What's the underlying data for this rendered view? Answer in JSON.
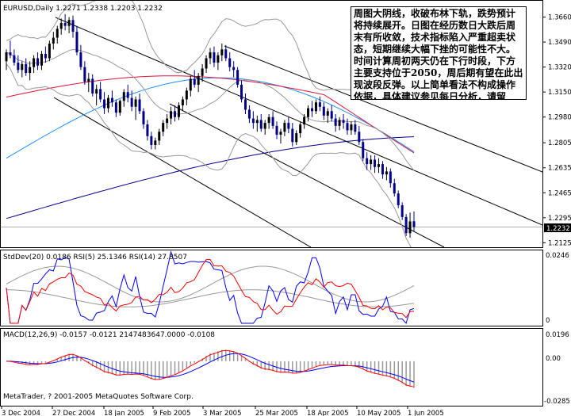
{
  "main_panel": {
    "header": "EURUSD,Daily  1.2271 1.2338 1.2203 1.2232",
    "price_ticks": [
      "1.3660",
      "1.3490",
      "1.3320",
      "1.3150",
      "1.2980",
      "1.2805",
      "1.2635",
      "1.2465",
      "1.2295",
      "1.2125"
    ],
    "current_price": "1.2232",
    "note": "周图大阴线，收破布林下轨，跌势预计将持续展开。日图在经历数日大跌后周末有所收敛，技术指标陷入严重超卖状态，短期继续大幅下挫的可能性不大。时间计算周初两天仍在下行时段，下方主要支持位于2050，周后期有望在此出现波段反弹。以上简单看法不构成操作依据，具体建议参见每日分析，请留意。"
  },
  "rsi_panel": {
    "header": "StdDev(20) 0.0186  RSI(5) 25.1346  RSI(14) 27.8507",
    "top_tick": "0.0246",
    "bottom_tick": "0"
  },
  "macd_panel": {
    "header": "MACD(12,26,9) -0.0157 -0.0121 2147483647.0000 -0.0108",
    "ticks": [
      "0.0196",
      "0.00",
      "-0.0285"
    ],
    "copyright": "MetaTrader, ? 2001-2005 MetaQuotes Software Corp."
  },
  "x_ticks": [
    "3 Dec 2004",
    "27 Dec 2004",
    "18 Jan 2005",
    "9 Feb 2005",
    "3 Mar 2005",
    "25 Mar 2005",
    "18 Apr 2005",
    "10 May 2005",
    "1 Jun 2005"
  ],
  "colors": {
    "bull_candle": "#000000",
    "bear_candle": "#00008b",
    "ma_short": "#dc143c",
    "ma_mid": "#1e90ff",
    "ma_long": "#00008b",
    "bollinger": "#999999",
    "rsi5": "#0000ff",
    "rsi14": "#ff0000",
    "macd_hist": "#999999",
    "macd_signal": "#0000ff",
    "macd_main": "#ff0000"
  },
  "chart_data": [
    {
      "type": "candlestick",
      "title": "EURUSD,Daily",
      "ylim": [
        1.21,
        1.376
      ],
      "candles": [
        [
          1.336,
          1.344,
          1.33,
          1.342
        ],
        [
          1.342,
          1.35,
          1.338,
          1.34
        ],
        [
          1.34,
          1.344,
          1.333,
          1.335
        ],
        [
          1.335,
          1.34,
          1.328,
          1.33
        ],
        [
          1.33,
          1.336,
          1.325,
          1.334
        ],
        [
          1.334,
          1.338,
          1.326,
          1.328
        ],
        [
          1.328,
          1.336,
          1.323,
          1.332
        ],
        [
          1.332,
          1.34,
          1.328,
          1.338
        ],
        [
          1.338,
          1.342,
          1.33,
          1.333
        ],
        [
          1.333,
          1.343,
          1.33,
          1.341
        ],
        [
          1.341,
          1.346,
          1.335,
          1.338
        ],
        [
          1.338,
          1.35,
          1.336,
          1.348
        ],
        [
          1.348,
          1.356,
          1.344,
          1.352
        ],
        [
          1.352,
          1.36,
          1.348,
          1.358
        ],
        [
          1.358,
          1.365,
          1.354,
          1.362
        ],
        [
          1.362,
          1.368,
          1.357,
          1.36
        ],
        [
          1.36,
          1.366,
          1.355,
          1.364
        ],
        [
          1.364,
          1.367,
          1.352,
          1.356
        ],
        [
          1.356,
          1.36,
          1.34,
          1.342
        ],
        [
          1.342,
          1.347,
          1.33,
          1.332
        ],
        [
          1.332,
          1.336,
          1.32,
          1.322
        ],
        [
          1.322,
          1.328,
          1.315,
          1.324
        ],
        [
          1.324,
          1.327,
          1.312,
          1.314
        ],
        [
          1.314,
          1.32,
          1.306,
          1.317
        ],
        [
          1.317,
          1.322,
          1.308,
          1.31
        ],
        [
          1.31,
          1.315,
          1.3,
          1.304
        ],
        [
          1.304,
          1.313,
          1.301,
          1.311
        ],
        [
          1.311,
          1.316,
          1.305,
          1.308
        ],
        [
          1.308,
          1.31,
          1.298,
          1.301
        ],
        [
          1.301,
          1.31,
          1.299,
          1.309
        ],
        [
          1.309,
          1.317,
          1.305,
          1.315
        ],
        [
          1.315,
          1.32,
          1.308,
          1.311
        ],
        [
          1.311,
          1.316,
          1.302,
          1.305
        ],
        [
          1.305,
          1.312,
          1.296,
          1.31
        ],
        [
          1.31,
          1.314,
          1.3,
          1.302
        ],
        [
          1.302,
          1.304,
          1.29,
          1.293
        ],
        [
          1.293,
          1.296,
          1.282,
          1.285
        ],
        [
          1.285,
          1.288,
          1.276,
          1.279
        ],
        [
          1.279,
          1.284,
          1.276,
          1.282
        ],
        [
          1.282,
          1.29,
          1.279,
          1.288
        ],
        [
          1.288,
          1.296,
          1.285,
          1.294
        ],
        [
          1.294,
          1.3,
          1.29,
          1.297
        ],
        [
          1.297,
          1.305,
          1.293,
          1.302
        ],
        [
          1.302,
          1.306,
          1.295,
          1.298
        ],
        [
          1.298,
          1.308,
          1.296,
          1.306
        ],
        [
          1.306,
          1.312,
          1.302,
          1.31
        ],
        [
          1.31,
          1.318,
          1.306,
          1.316
        ],
        [
          1.316,
          1.326,
          1.312,
          1.324
        ],
        [
          1.324,
          1.33,
          1.318,
          1.32
        ],
        [
          1.32,
          1.328,
          1.315,
          1.326
        ],
        [
          1.326,
          1.334,
          1.322,
          1.331
        ],
        [
          1.331,
          1.34,
          1.328,
          1.338
        ],
        [
          1.338,
          1.345,
          1.334,
          1.342
        ],
        [
          1.342,
          1.346,
          1.332,
          1.335
        ],
        [
          1.335,
          1.342,
          1.33,
          1.34
        ],
        [
          1.34,
          1.348,
          1.336,
          1.344
        ],
        [
          1.344,
          1.347,
          1.336,
          1.338
        ],
        [
          1.338,
          1.342,
          1.329,
          1.332
        ],
        [
          1.332,
          1.336,
          1.325,
          1.33
        ],
        [
          1.33,
          1.332,
          1.318,
          1.32
        ],
        [
          1.32,
          1.323,
          1.308,
          1.31
        ],
        [
          1.31,
          1.314,
          1.3,
          1.303
        ],
        [
          1.303,
          1.306,
          1.294,
          1.297
        ],
        [
          1.297,
          1.302,
          1.29,
          1.294
        ],
        [
          1.294,
          1.299,
          1.288,
          1.296
        ],
        [
          1.296,
          1.3,
          1.288,
          1.29
        ],
        [
          1.29,
          1.296,
          1.286,
          1.294
        ],
        [
          1.294,
          1.3,
          1.29,
          1.298
        ],
        [
          1.298,
          1.302,
          1.29,
          1.292
        ],
        [
          1.292,
          1.295,
          1.283,
          1.286
        ],
        [
          1.286,
          1.29,
          1.28,
          1.288
        ],
        [
          1.288,
          1.296,
          1.285,
          1.294
        ],
        [
          1.294,
          1.298,
          1.287,
          1.29
        ],
        [
          1.29,
          1.294,
          1.278,
          1.281
        ],
        [
          1.281,
          1.289,
          1.279,
          1.287
        ],
        [
          1.287,
          1.295,
          1.284,
          1.293
        ],
        [
          1.293,
          1.3,
          1.29,
          1.298
        ],
        [
          1.298,
          1.306,
          1.295,
          1.304
        ],
        [
          1.304,
          1.309,
          1.298,
          1.302
        ],
        [
          1.302,
          1.31,
          1.3,
          1.308
        ],
        [
          1.308,
          1.312,
          1.302,
          1.305
        ],
        [
          1.305,
          1.308,
          1.296,
          1.299
        ],
        [
          1.299,
          1.304,
          1.294,
          1.302
        ],
        [
          1.302,
          1.306,
          1.295,
          1.297
        ],
        [
          1.297,
          1.3,
          1.288,
          1.292
        ],
        [
          1.292,
          1.298,
          1.289,
          1.296
        ],
        [
          1.296,
          1.3,
          1.29,
          1.294
        ],
        [
          1.294,
          1.297,
          1.286,
          1.289
        ],
        [
          1.289,
          1.295,
          1.286,
          1.293
        ],
        [
          1.293,
          1.296,
          1.286,
          1.288
        ],
        [
          1.288,
          1.292,
          1.279,
          1.281
        ],
        [
          1.281,
          1.283,
          1.268,
          1.27
        ],
        [
          1.27,
          1.274,
          1.262,
          1.266
        ],
        [
          1.266,
          1.272,
          1.262,
          1.269
        ],
        [
          1.269,
          1.272,
          1.26,
          1.264
        ],
        [
          1.264,
          1.27,
          1.26,
          1.266
        ],
        [
          1.266,
          1.268,
          1.256,
          1.259
        ],
        [
          1.259,
          1.264,
          1.255,
          1.261
        ],
        [
          1.261,
          1.263,
          1.25,
          1.253
        ],
        [
          1.253,
          1.256,
          1.244,
          1.246
        ],
        [
          1.246,
          1.248,
          1.236,
          1.238
        ],
        [
          1.238,
          1.24,
          1.228,
          1.23
        ],
        [
          1.23,
          1.232,
          1.217,
          1.219
        ],
        [
          1.219,
          1.233,
          1.216,
          1.227
        ],
        [
          1.2271,
          1.2338,
          1.2203,
          1.2232
        ]
      ]
    },
    {
      "type": "line",
      "title": "StdDev(20) 0.0186  RSI(5) 25.1346  RSI(14) 27.8507",
      "ylim": [
        0,
        100
      ]
    },
    {
      "type": "bar",
      "title": "MACD(12,26,9)",
      "ylim": [
        -0.0285,
        0.0196
      ]
    }
  ]
}
